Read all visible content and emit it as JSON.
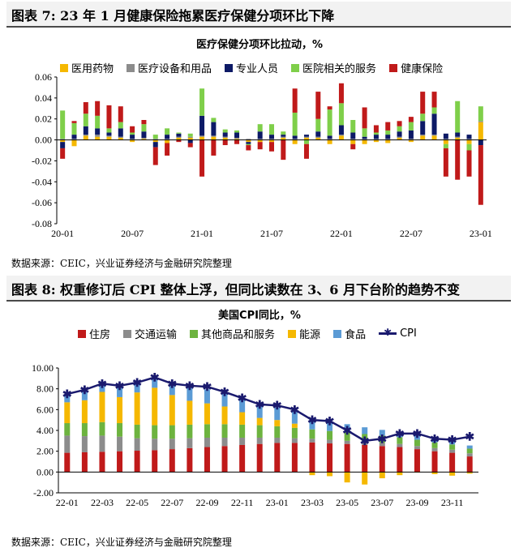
{
  "figure7": {
    "header": "图表 7: 23 年 1 月健康保险拖累医疗保健分项环比下降",
    "source": "数据来源：CEIC，兴业证券经济与金融研究院整理"
  },
  "figure8": {
    "header": "图表 8: 权重修订后 CPI 整体上浮，但同比读数在 3、6 月下台阶的趋势不变",
    "source": "数据来源：CEIC，兴业证券经济与金融研究院整理"
  },
  "chart_data": [
    {
      "type": "bar",
      "stacked": true,
      "title": "医疗保健分项环比拉动，%",
      "x": [
        "20-01",
        "20-02",
        "20-03",
        "20-04",
        "20-05",
        "20-06",
        "20-07",
        "20-08",
        "20-09",
        "20-10",
        "20-11",
        "20-12",
        "21-01",
        "21-02",
        "21-03",
        "21-04",
        "21-05",
        "21-06",
        "21-07",
        "21-08",
        "21-09",
        "21-10",
        "21-11",
        "21-12",
        "22-01",
        "22-02",
        "22-03",
        "22-04",
        "22-05",
        "22-06",
        "22-07",
        "22-08",
        "22-09",
        "22-10",
        "22-11",
        "22-12",
        "23-01"
      ],
      "xticks": [
        "20-01",
        "20-07",
        "21-01",
        "21-07",
        "22-01",
        "22-07",
        "23-01"
      ],
      "yticks": [
        "0.06",
        "0.04",
        "0.02",
        "0.00",
        "-0.02",
        "-0.04",
        "-0.06",
        "-0.08"
      ],
      "ylim": [
        -0.08,
        0.06
      ],
      "legend_position": "top",
      "series": [
        {
          "name": "医用药物",
          "color": "#f5b800",
          "values": [
            -0.002,
            -0.006,
            0.004,
            0.003,
            0.003,
            0.002,
            -0.002,
            0.001,
            -0.002,
            -0.003,
            0.002,
            0.002,
            0.003,
            0.003,
            0.002,
            0.001,
            -0.002,
            -0.002,
            -0.002,
            0.002,
            -0.004,
            0.002,
            0.002,
            -0.004,
            0.004,
            -0.004,
            -0.004,
            -0.002,
            -0.003,
            0.002,
            -0.002,
            0.004,
            0.004,
            -0.004,
            0.002,
            -0.004,
            0.017
          ]
        },
        {
          "name": "医疗设备和用品",
          "color": "#8c8c8c",
          "values": [
            0.001,
            0.001,
            0.001,
            0.002,
            0.001,
            0.001,
            0.001,
            0.001,
            0.001,
            0.001,
            0.001,
            0.001,
            0.001,
            0.001,
            0.001,
            0.001,
            0.001,
            0.001,
            0.001,
            0.001,
            0.001,
            0.001,
            0.001,
            0.001,
            0.001,
            0.001,
            0.001,
            0.001,
            0.001,
            0.001,
            0.001,
            0.001,
            0.001,
            0.001,
            0.001,
            0.001,
            0.001
          ]
        },
        {
          "name": "专业人员",
          "color": "#0d1a66",
          "values": [
            -0.006,
            0.004,
            0.008,
            0.006,
            0.003,
            0.008,
            0.004,
            0.006,
            -0.005,
            0.004,
            0.003,
            -0.003,
            0.019,
            0.013,
            0.004,
            0.005,
            -0.002,
            0.007,
            0.004,
            0.002,
            0.003,
            0.002,
            0.005,
            0.003,
            0.009,
            0.006,
            0.002,
            0.004,
            0.004,
            0.005,
            0.008,
            0.013,
            0.02,
            0.005,
            0.004,
            0.004,
            -0.005
          ]
        },
        {
          "name": "医院相关的服务",
          "color": "#7fcf4a",
          "values": [
            0.027,
            0.011,
            0.012,
            0.012,
            0.004,
            0.006,
            0.002,
            0.007,
            0.004,
            0.006,
            0.001,
            0.003,
            0.026,
            0.004,
            0.003,
            0.002,
            -0.001,
            0.007,
            0.01,
            0.003,
            0.022,
            -0.004,
            0.012,
            0.025,
            0.021,
            0.012,
            0.008,
            0.002,
            0.004,
            0.005,
            0.008,
            0.007,
            0.006,
            -0.004,
            0.03,
            -0.006,
            0.014
          ]
        },
        {
          "name": "健康保险",
          "color": "#c01a1a",
          "values": [
            -0.01,
            0.002,
            0.011,
            0.014,
            0.022,
            0.015,
            0.006,
            0.004,
            -0.017,
            -0.012,
            -0.002,
            -0.004,
            -0.035,
            -0.015,
            -0.005,
            -0.004,
            -0.005,
            -0.007,
            -0.009,
            -0.019,
            0.023,
            -0.014,
            0.026,
            0.003,
            0.019,
            -0.005,
            0.02,
            0.007,
            0.008,
            0.005,
            0.005,
            0.021,
            0.015,
            -0.027,
            -0.038,
            -0.025,
            -0.057
          ]
        }
      ]
    },
    {
      "type": "bar",
      "stacked": true,
      "title": "美国CPI同比，%",
      "x": [
        "22-01",
        "22-02",
        "22-03",
        "22-04",
        "22-05",
        "22-06",
        "22-07",
        "22-08",
        "22-09",
        "22-10",
        "22-11",
        "22-12",
        "23-01",
        "23-02",
        "23-03",
        "23-04",
        "23-05",
        "23-06",
        "23-07",
        "23-08",
        "23-09",
        "23-10",
        "23-11",
        "23-12"
      ],
      "xticks": [
        "22-01",
        "22-03",
        "22-05",
        "22-07",
        "22-09",
        "22-11",
        "23-01",
        "23-03",
        "23-05",
        "23-07",
        "23-09",
        "23-11"
      ],
      "yticks": [
        "10.00",
        "8.00",
        "6.00",
        "4.00",
        "2.00",
        "0.00",
        "-2.00"
      ],
      "ylim": [
        -2,
        10
      ],
      "legend_position": "top",
      "series": [
        {
          "name": "住房",
          "color": "#c01a1a",
          "values": [
            1.85,
            1.9,
            1.95,
            2.0,
            2.05,
            2.1,
            2.2,
            2.3,
            2.4,
            2.5,
            2.6,
            2.7,
            2.8,
            2.8,
            2.85,
            2.75,
            2.7,
            2.6,
            2.5,
            2.4,
            2.2,
            2.0,
            1.85,
            1.5
          ]
        },
        {
          "name": "交通运输",
          "color": "#8c8c8c",
          "values": [
            1.65,
            1.55,
            1.55,
            1.4,
            1.2,
            1.1,
            1.0,
            0.95,
            0.9,
            0.8,
            0.7,
            0.6,
            0.5,
            0.45,
            0.35,
            0.35,
            0.3,
            0.3,
            0.3,
            0.3,
            0.3,
            0.3,
            0.3,
            0.3
          ]
        },
        {
          "name": "其他商品和服务",
          "color": "#6db33f",
          "values": [
            1.2,
            1.25,
            1.3,
            1.3,
            1.3,
            1.3,
            1.3,
            1.3,
            1.3,
            1.3,
            1.25,
            1.2,
            1.1,
            1.0,
            0.9,
            0.85,
            0.8,
            0.75,
            0.7,
            0.65,
            0.6,
            0.55,
            0.5,
            0.45
          ]
        },
        {
          "name": "能源",
          "color": "#f5b800",
          "values": [
            2.0,
            2.2,
            2.9,
            2.5,
            3.1,
            3.6,
            2.9,
            2.3,
            2.0,
            1.7,
            1.2,
            0.7,
            0.6,
            0.4,
            -0.3,
            -0.4,
            -1.0,
            -1.2,
            -0.6,
            -0.3,
            -0.05,
            -0.2,
            -0.35,
            -0.15
          ]
        },
        {
          "name": "食品",
          "color": "#5b9bd5",
          "values": [
            0.8,
            0.85,
            1.0,
            1.05,
            1.1,
            1.2,
            1.25,
            1.35,
            1.35,
            1.3,
            1.25,
            1.2,
            1.2,
            1.15,
            1.0,
            0.9,
            0.8,
            0.65,
            0.55,
            0.5,
            0.45,
            0.4,
            0.35,
            0.3
          ]
        },
        {
          "name": "CPI",
          "color": "#1a1a6e",
          "type": "line",
          "values": [
            7.5,
            7.9,
            8.5,
            8.3,
            8.6,
            9.1,
            8.5,
            8.3,
            8.2,
            7.7,
            7.1,
            6.5,
            6.4,
            6.0,
            5.0,
            4.9,
            4.0,
            3.0,
            3.2,
            3.7,
            3.7,
            3.2,
            3.1,
            3.4
          ]
        }
      ]
    }
  ]
}
